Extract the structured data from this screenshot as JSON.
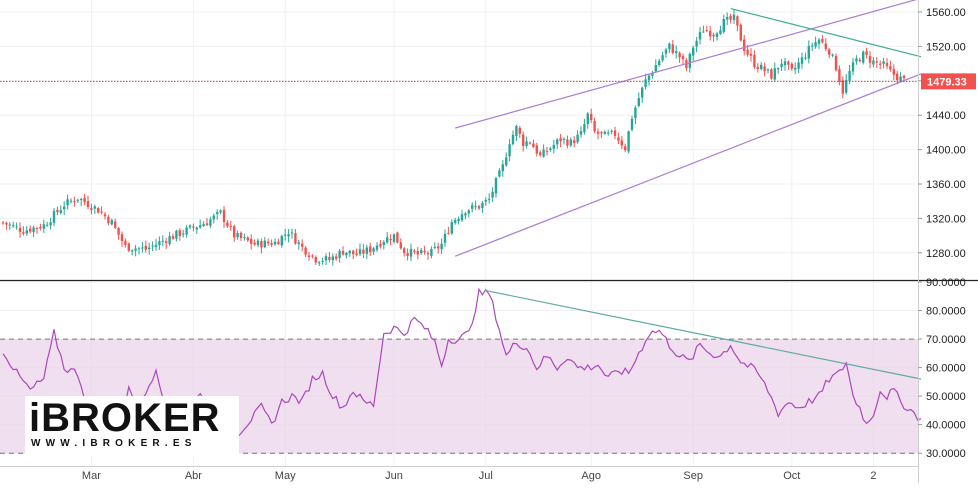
{
  "chart_data": [
    {
      "type": "candlestick",
      "title": "",
      "ylim": [
        1250,
        1575
      ],
      "y_ticks": [
        "1560.00",
        "1520.00",
        "1480.00",
        "1440.00",
        "1400.00",
        "1360.00",
        "1320.00",
        "1280.00"
      ],
      "y_tick_values": [
        1560,
        1520,
        1480,
        1440,
        1400,
        1360,
        1320,
        1280
      ],
      "last_price": 1479.33,
      "last_price_label": "1479.33",
      "up_color": "#26a69a",
      "down_color": "#ef5350",
      "anchors": [
        [
          0,
          1315
        ],
        [
          6,
          1306
        ],
        [
          12,
          1312
        ],
        [
          18,
          1336
        ],
        [
          22,
          1344
        ],
        [
          28,
          1330
        ],
        [
          32,
          1315
        ],
        [
          36,
          1287
        ],
        [
          42,
          1284
        ],
        [
          48,
          1296
        ],
        [
          54,
          1306
        ],
        [
          60,
          1316
        ],
        [
          64,
          1326
        ],
        [
          68,
          1300
        ],
        [
          74,
          1290
        ],
        [
          80,
          1292
        ],
        [
          84,
          1305
        ],
        [
          88,
          1286
        ],
        [
          92,
          1273
        ],
        [
          96,
          1272
        ],
        [
          100,
          1282
        ],
        [
          104,
          1278
        ],
        [
          108,
          1284
        ],
        [
          112,
          1295
        ],
        [
          115,
          1300
        ],
        [
          118,
          1282
        ],
        [
          122,
          1278
        ],
        [
          126,
          1280
        ],
        [
          129,
          1290
        ],
        [
          132,
          1316
        ],
        [
          136,
          1330
        ],
        [
          140,
          1334
        ],
        [
          143,
          1342
        ],
        [
          145,
          1362
        ],
        [
          147,
          1380
        ],
        [
          149,
          1410
        ],
        [
          151,
          1425
        ],
        [
          153,
          1408
        ],
        [
          155,
          1410
        ],
        [
          158,
          1392
        ],
        [
          161,
          1402
        ],
        [
          164,
          1412
        ],
        [
          167,
          1408
        ],
        [
          170,
          1418
        ],
        [
          172,
          1440
        ],
        [
          174,
          1420
        ],
        [
          177,
          1416
        ],
        [
          180,
          1418
        ],
        [
          183,
          1402
        ],
        [
          185,
          1438
        ],
        [
          187,
          1460
        ],
        [
          189,
          1480
        ],
        [
          191,
          1492
        ],
        [
          194,
          1510
        ],
        [
          196,
          1520
        ],
        [
          199,
          1508
        ],
        [
          201,
          1495
        ],
        [
          203,
          1520
        ],
        [
          206,
          1540
        ],
        [
          209,
          1535
        ],
        [
          212,
          1548
        ],
        [
          215,
          1552
        ],
        [
          218,
          1518
        ],
        [
          221,
          1500
        ],
        [
          224,
          1492
        ],
        [
          226,
          1486
        ],
        [
          229,
          1502
        ],
        [
          232,
          1490
        ],
        [
          235,
          1505
        ],
        [
          238,
          1522
        ],
        [
          240,
          1528
        ],
        [
          243,
          1515
        ],
        [
          245,
          1496
        ],
        [
          247,
          1468
        ],
        [
          249,
          1490
        ],
        [
          251,
          1504
        ],
        [
          253,
          1510
        ],
        [
          256,
          1502
        ],
        [
          259,
          1498
        ],
        [
          261,
          1490
        ],
        [
          263,
          1485
        ],
        [
          265,
          1480
        ]
      ],
      "total_bars": 266,
      "channel_upper": {
        "from": [
          133,
          1425
        ],
        "to": [
          270,
          1576
        ]
      },
      "channel_lower": {
        "from": [
          133,
          1276
        ],
        "to": [
          270,
          1488
        ]
      },
      "resistance_line": {
        "from": [
          214,
          1564
        ],
        "to": [
          270,
          1508
        ]
      }
    },
    {
      "type": "line",
      "series_name": "",
      "ylim": [
        25,
        92
      ],
      "y_ticks": [
        "90.0000",
        "80.0000",
        "70.0000",
        "60.0000",
        "50.0000",
        "40.0000",
        "30.0000"
      ],
      "y_tick_values": [
        90,
        80,
        70,
        60,
        50,
        40,
        30
      ],
      "band": [
        30,
        70
      ],
      "band_color": "#e9d4ea",
      "line_color": "#ab47bc",
      "anchors": [
        [
          0,
          66
        ],
        [
          4,
          58
        ],
        [
          8,
          52
        ],
        [
          12,
          56
        ],
        [
          15,
          72
        ],
        [
          18,
          60
        ],
        [
          22,
          58
        ],
        [
          25,
          46
        ],
        [
          28,
          38
        ],
        [
          31,
          44
        ],
        [
          34,
          40
        ],
        [
          37,
          52
        ],
        [
          41,
          48
        ],
        [
          45,
          60
        ],
        [
          48,
          46
        ],
        [
          51,
          40
        ],
        [
          54,
          40
        ],
        [
          58,
          52
        ],
        [
          61,
          44
        ],
        [
          64,
          36
        ],
        [
          67,
          34
        ],
        [
          70,
          38
        ],
        [
          73,
          42
        ],
        [
          76,
          46
        ],
        [
          79,
          40
        ],
        [
          82,
          48
        ],
        [
          85,
          50
        ],
        [
          88,
          48
        ],
        [
          91,
          56
        ],
        [
          94,
          58
        ],
        [
          97,
          50
        ],
        [
          100,
          46
        ],
        [
          103,
          52
        ],
        [
          106,
          48
        ],
        [
          109,
          47
        ],
        [
          112,
          72
        ],
        [
          115,
          74
        ],
        [
          118,
          72
        ],
        [
          121,
          77
        ],
        [
          124,
          74
        ],
        [
          127,
          69
        ],
        [
          129,
          61
        ],
        [
          131,
          70
        ],
        [
          134,
          70
        ],
        [
          137,
          72
        ],
        [
          140,
          86
        ],
        [
          143,
          86
        ],
        [
          145,
          78
        ],
        [
          148,
          64
        ],
        [
          151,
          69
        ],
        [
          154,
          67
        ],
        [
          157,
          60
        ],
        [
          160,
          64
        ],
        [
          163,
          60
        ],
        [
          166,
          64
        ],
        [
          169,
          60
        ],
        [
          172,
          60
        ],
        [
          175,
          61
        ],
        [
          178,
          56
        ],
        [
          181,
          59
        ],
        [
          184,
          58
        ],
        [
          187,
          65
        ],
        [
          190,
          72
        ],
        [
          193,
          73
        ],
        [
          196,
          68
        ],
        [
          199,
          64
        ],
        [
          202,
          62
        ],
        [
          205,
          68
        ],
        [
          208,
          65
        ],
        [
          211,
          64
        ],
        [
          214,
          68
        ],
        [
          217,
          62
        ],
        [
          220,
          60
        ],
        [
          222,
          58
        ],
        [
          225,
          52
        ],
        [
          228,
          44
        ],
        [
          231,
          48
        ],
        [
          234,
          46
        ],
        [
          237,
          48
        ],
        [
          240,
          50
        ],
        [
          243,
          56
        ],
        [
          246,
          58
        ],
        [
          248,
          62
        ],
        [
          250,
          50
        ],
        [
          252,
          46
        ],
        [
          254,
          40
        ],
        [
          256,
          44
        ],
        [
          258,
          52
        ],
        [
          260,
          50
        ],
        [
          262,
          52
        ],
        [
          264,
          48
        ],
        [
          266,
          46
        ],
        [
          268,
          44
        ],
        [
          270,
          42
        ]
      ],
      "total_points": 271,
      "trend_line": {
        "from": [
          142,
          87
        ],
        "to": [
          270,
          56
        ]
      }
    }
  ],
  "x_axis": {
    "months": [
      {
        "label": "Mar",
        "idx": 26
      },
      {
        "label": "Abr",
        "idx": 56
      },
      {
        "label": "May",
        "idx": 83
      },
      {
        "label": "Jun",
        "idx": 115
      },
      {
        "label": "Jul",
        "idx": 142
      },
      {
        "label": "Ago",
        "idx": 173
      },
      {
        "label": "Sep",
        "idx": 203
      },
      {
        "label": "Oct",
        "idx": 232
      },
      {
        "label": "2",
        "idx": 256
      }
    ]
  },
  "watermark": {
    "logo_text": "iBROKER",
    "url_text": "WWW.IBROKER.ES"
  }
}
